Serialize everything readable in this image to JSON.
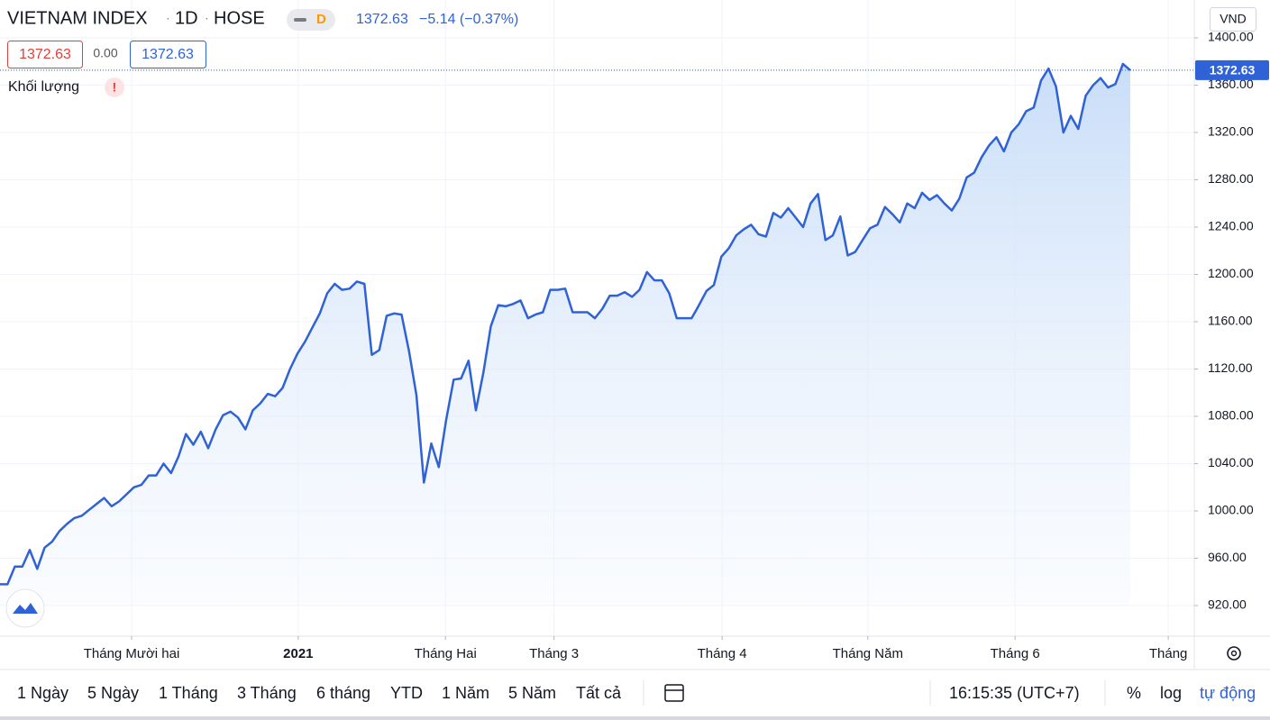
{
  "chart_data": {
    "type": "area",
    "values": [
      938,
      938,
      953,
      953,
      967,
      951,
      969,
      974,
      983,
      989,
      994,
      996,
      1001,
      1006,
      1011,
      1004,
      1008,
      1014,
      1020,
      1022,
      1030,
      1030,
      1040,
      1032,
      1046,
      1065,
      1056,
      1067,
      1053,
      1069,
      1081,
      1084,
      1079,
      1069,
      1085,
      1091,
      1099,
      1097,
      1104,
      1120,
      1133,
      1143,
      1155,
      1167,
      1184,
      1192,
      1187,
      1188,
      1194,
      1192,
      1132,
      1136,
      1165,
      1167,
      1166,
      1135,
      1098,
      1024,
      1057,
      1037,
      1077,
      1111,
      1112,
      1127,
      1085,
      1117,
      1156,
      1174,
      1173,
      1175,
      1178,
      1163,
      1166,
      1168,
      1187,
      1187,
      1188,
      1168,
      1168,
      1168,
      1163,
      1171,
      1182,
      1182,
      1185,
      1181,
      1187,
      1202,
      1195,
      1195,
      1184,
      1163,
      1163,
      1163,
      1174,
      1186,
      1191,
      1215,
      1222,
      1233,
      1238,
      1242,
      1234,
      1232,
      1252,
      1248,
      1256,
      1248,
      1240,
      1260,
      1268,
      1229,
      1233,
      1249,
      1216,
      1219,
      1229,
      1239,
      1242,
      1257,
      1251,
      1244,
      1260,
      1256,
      1269,
      1263,
      1267,
      1260,
      1254,
      1264,
      1282,
      1286,
      1299,
      1309,
      1316,
      1304,
      1320,
      1327,
      1338,
      1341,
      1364,
      1374,
      1359,
      1320,
      1334,
      1323,
      1351,
      1360,
      1366,
      1358,
      1361,
      1378,
      1372.63
    ],
    "color": "#2f62d6",
    "xlim": [
      0,
      160.6
    ],
    "xticks": [
      {
        "value": 17.7,
        "label": "Tháng Mười hai"
      },
      {
        "value": 40.1,
        "label": "2021"
      },
      {
        "value": 59.9,
        "label": "Tháng Hai"
      },
      {
        "value": 74.5,
        "label": "Tháng 3"
      },
      {
        "value": 97.1,
        "label": "Tháng 4"
      },
      {
        "value": 116.7,
        "label": "Tháng Năm"
      },
      {
        "value": 136.5,
        "label": "Tháng 6"
      },
      {
        "value": 157.1,
        "label": "Tháng"
      }
    ],
    "ylim": [
      894.1,
      1432
    ],
    "yticks": [
      {
        "value": 920,
        "label": "920.00"
      },
      {
        "value": 960,
        "label": "960.00"
      },
      {
        "value": 1000,
        "label": "1000.00"
      },
      {
        "value": 1040,
        "label": "1040.00"
      },
      {
        "value": 1080,
        "label": "1080.00"
      },
      {
        "value": 1120,
        "label": "1120.00"
      },
      {
        "value": 1160,
        "label": "1160.00"
      },
      {
        "value": 1200,
        "label": "1200.00"
      },
      {
        "value": 1240,
        "label": "1240.00"
      },
      {
        "value": 1280,
        "label": "1280.00"
      },
      {
        "value": 1320,
        "label": "1320.00"
      },
      {
        "value": 1360,
        "label": "1360.00"
      },
      {
        "value": 1400,
        "label": "1400.00"
      }
    ],
    "grid": true
  },
  "ui": {
    "title": [
      "VIETNAM INDEX",
      "1D",
      "HOSE"
    ],
    "badge": "D",
    "price": "1372.63",
    "change": "−5.14 (−0.37%)",
    "bid": "1372.63",
    "spread": "0.00",
    "ask": "1372.63",
    "volume": "Khối lượng",
    "warning": "!",
    "currency": "VND",
    "ranges": [
      "1 Ngày",
      "5 Ngày",
      "1 Tháng",
      "3 Tháng",
      "6 tháng",
      "YTD",
      "1 Năm",
      "5 Năm",
      "Tất cả"
    ],
    "time": "16:15:35 (UTC+7)",
    "percent": "%",
    "log": "log",
    "auto": "tự động"
  }
}
